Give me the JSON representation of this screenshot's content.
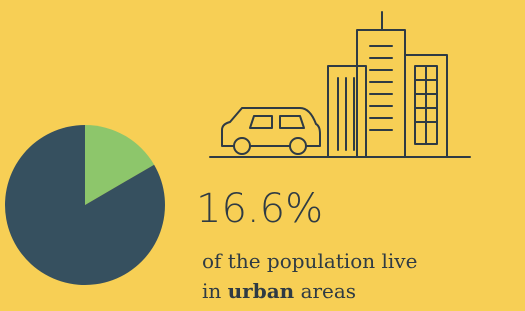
{
  "chart_data": {
    "type": "pie",
    "values": [
      16.6,
      83.4
    ],
    "value_labels": [
      "16.6%",
      null
    ],
    "colors": [
      "#8dc66b",
      "#36505f"
    ],
    "start_angle": 0,
    "direction": "clockwise",
    "caption": [
      "of the population live",
      "in",
      "urban",
      "areas"
    ]
  }
}
